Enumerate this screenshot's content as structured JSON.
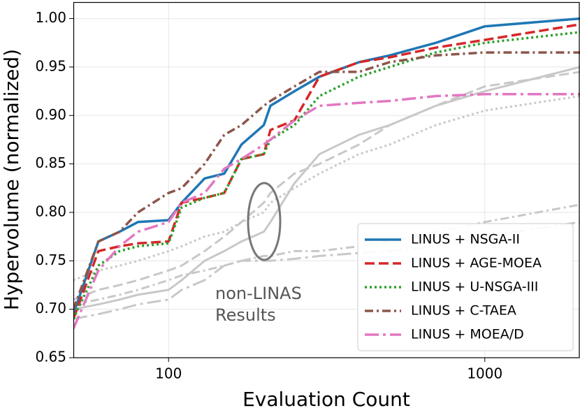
{
  "chart_data": {
    "type": "line",
    "x_label": "Evaluation Count",
    "y_label": "Hypervolume (normalized)",
    "xlog": true,
    "xlim": [
      50,
      2000
    ],
    "ylim": [
      0.65,
      1.017
    ],
    "xticks": [
      100,
      1000
    ],
    "yticks": [
      0.65,
      {
        "value": 0.7,
        "label": "0.70"
      },
      0.75,
      {
        "value": 0.8,
        "label": "0.80"
      },
      0.85,
      {
        "value": 0.9,
        "label": "0.90"
      },
      0.95,
      {
        "value": 1.0,
        "label": "1.00"
      }
    ],
    "grid": true,
    "legend": "lower right",
    "x": [
      50,
      60,
      70,
      80,
      100,
      110,
      130,
      150,
      170,
      200,
      210,
      250,
      300,
      400,
      500,
      700,
      1000,
      2000
    ],
    "series": [
      {
        "name": "LINUS + NSGA-II",
        "color": "#1f77b4",
        "linestyle": "solid",
        "values": [
          0.695,
          0.77,
          0.78,
          0.79,
          0.792,
          0.81,
          0.835,
          0.84,
          0.87,
          0.89,
          0.91,
          0.925,
          0.94,
          0.955,
          0.962,
          0.975,
          0.992,
          1.0
        ]
      },
      {
        "name": "LINUS + AGE-MOEA",
        "color": "#d62728",
        "linestyle": "dashed",
        "values": [
          0.69,
          0.76,
          0.765,
          0.768,
          0.77,
          0.81,
          0.815,
          0.82,
          0.855,
          0.86,
          0.885,
          0.895,
          0.94,
          0.955,
          0.96,
          0.97,
          0.978,
          0.994
        ]
      },
      {
        "name": "LINUS + U-NSGA-III",
        "color": "#2ca02c",
        "linestyle": "dotted",
        "values": [
          0.69,
          0.745,
          0.76,
          0.765,
          0.768,
          0.805,
          0.815,
          0.82,
          0.855,
          0.86,
          0.875,
          0.89,
          0.92,
          0.94,
          0.95,
          0.965,
          0.975,
          0.986
        ]
      },
      {
        "name": "LINUS + C-TAEA",
        "color": "#8c564b",
        "linestyle": "dashdot",
        "values": [
          0.7,
          0.77,
          0.78,
          0.8,
          0.82,
          0.825,
          0.85,
          0.88,
          0.89,
          0.91,
          0.915,
          0.93,
          0.945,
          0.945,
          0.955,
          0.962,
          0.965,
          0.965
        ]
      },
      {
        "name": "LINUS + MOEA/D",
        "color": "#e377c2",
        "linestyle": "longdashdot",
        "values": [
          0.68,
          0.74,
          0.765,
          0.78,
          0.79,
          0.81,
          0.82,
          0.845,
          0.855,
          0.87,
          0.875,
          0.895,
          0.91,
          0.913,
          0.915,
          0.92,
          0.922,
          0.922
        ]
      }
    ],
    "other_series_color": "#c8c8c8",
    "other_series": [
      {
        "linestyle": "solid",
        "values": [
          0.7,
          0.705,
          0.71,
          0.715,
          0.72,
          0.73,
          0.75,
          0.76,
          0.77,
          0.78,
          0.79,
          0.83,
          0.86,
          0.88,
          0.89,
          0.91,
          0.925,
          0.95
        ]
      },
      {
        "linestyle": "dashed",
        "values": [
          0.71,
          0.72,
          0.725,
          0.73,
          0.74,
          0.745,
          0.76,
          0.775,
          0.79,
          0.81,
          0.82,
          0.84,
          0.85,
          0.87,
          0.89,
          0.91,
          0.93,
          0.945
        ]
      },
      {
        "linestyle": "dotted",
        "values": [
          0.73,
          0.74,
          0.745,
          0.75,
          0.76,
          0.765,
          0.775,
          0.78,
          0.79,
          0.8,
          0.81,
          0.825,
          0.84,
          0.86,
          0.87,
          0.89,
          0.905,
          0.92
        ]
      },
      {
        "linestyle": "dashdot",
        "values": [
          0.705,
          0.71,
          0.715,
          0.72,
          0.73,
          0.735,
          0.74,
          0.745,
          0.75,
          0.755,
          0.755,
          0.76,
          0.76,
          0.765,
          0.77,
          0.78,
          0.79,
          0.808
        ]
      },
      {
        "linestyle": "longdashdot",
        "values": [
          0.69,
          0.695,
          0.7,
          0.705,
          0.71,
          0.72,
          0.73,
          0.745,
          0.75,
          0.75,
          0.75,
          0.752,
          0.755,
          0.758,
          0.76,
          0.765,
          0.775,
          0.79
        ]
      }
    ],
    "annotation": [
      "non-LINAS",
      "Results"
    ]
  }
}
